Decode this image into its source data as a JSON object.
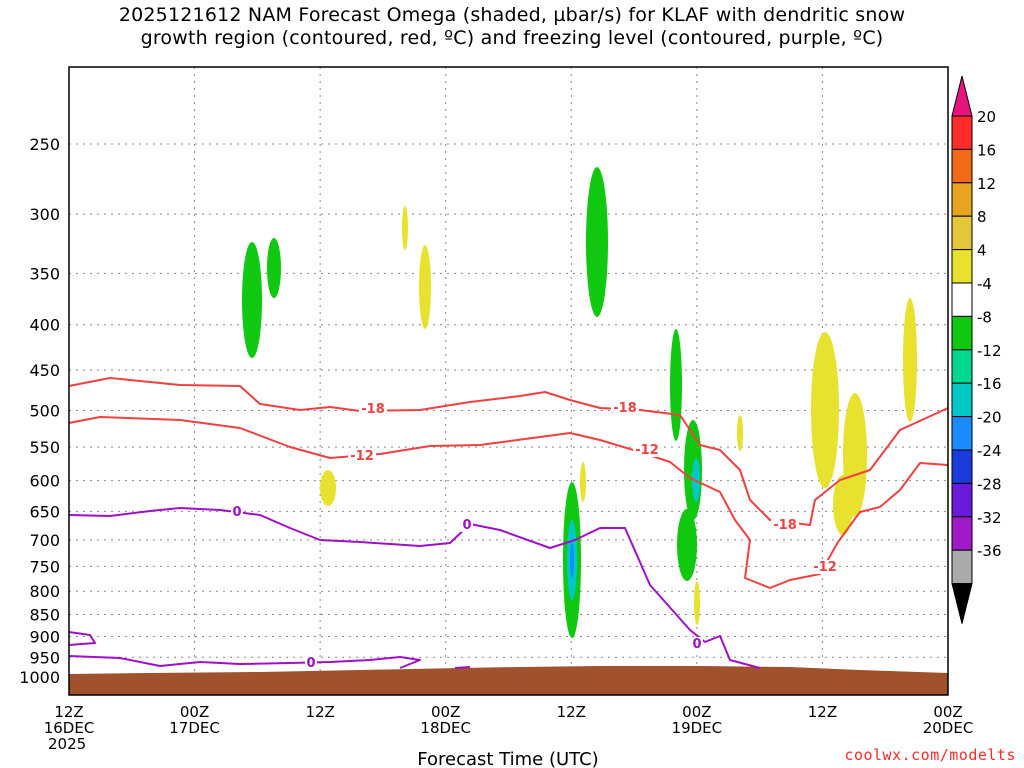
{
  "title": {
    "line1": "2025121612 NAM Forecast Omega (shaded, µbar/s) for KLAF with dendritic snow",
    "line2": "growth region (contoured, red, ºC) and freezing level (contoured, purple, ºC)"
  },
  "credit": "coolwx.com/modelts",
  "chart_data": {
    "type": "time-height cross section",
    "xlabel": "Forecast Time (UTC)",
    "x_ticks": [
      {
        "hour": 0,
        "label": "12Z",
        "label2": "16DEC",
        "label3": "2025"
      },
      {
        "hour": 12,
        "label": "00Z",
        "label2": "17DEC",
        "label3": ""
      },
      {
        "hour": 24,
        "label": "12Z",
        "label2": "",
        "label3": ""
      },
      {
        "hour": 36,
        "label": "00Z",
        "label2": "18DEC",
        "label3": ""
      },
      {
        "hour": 48,
        "label": "12Z",
        "label2": "",
        "label3": ""
      },
      {
        "hour": 60,
        "label": "00Z",
        "label2": "19DEC",
        "label3": ""
      },
      {
        "hour": 72,
        "label": "12Z",
        "label2": "",
        "label3": ""
      },
      {
        "hour": 84,
        "label": "00Z",
        "label2": "20DEC",
        "label3": ""
      }
    ],
    "y_ticks": [
      "250",
      "300",
      "350",
      "400",
      "450",
      "500",
      "550",
      "600",
      "650",
      "700",
      "750",
      "800",
      "850",
      "900",
      "950",
      "1000"
    ],
    "y_values": [
      250,
      300,
      350,
      400,
      450,
      500,
      550,
      600,
      650,
      700,
      750,
      800,
      850,
      900,
      950,
      1000
    ],
    "colorbar": {
      "labels": [
        "20",
        "16",
        "12",
        "8",
        "4",
        "-4",
        "-8",
        "-12",
        "-16",
        "-20",
        "-24",
        "-28",
        "-32",
        "-36"
      ],
      "colors": [
        "#ff2a2a",
        "#f26a18",
        "#e6a420",
        "#e5c53a",
        "#e8e22e",
        "#ffffff",
        "#10c810",
        "#00d890",
        "#00c8c8",
        "#1a8cff",
        "#1a3cdc",
        "#6a1adc",
        "#a01ac8",
        "#aaaaaa"
      ],
      "top_color": "#e8147c",
      "bottom_color": "#000000"
    },
    "contours": {
      "dgz_labels": [
        "-18",
        "-12",
        "-18",
        "-12",
        "-18",
        "-12"
      ],
      "freezing_labels": [
        "0",
        "0",
        "0",
        "0"
      ],
      "dgz_color": "#f04040",
      "freezing_color": "#a010c8"
    },
    "terrain_color": "#a0522d",
    "omega_colors": {
      "green": "#10c810",
      "yellow": "#e8e22e",
      "blue": "#1a8cff",
      "cyan": "#00c8c8"
    }
  }
}
